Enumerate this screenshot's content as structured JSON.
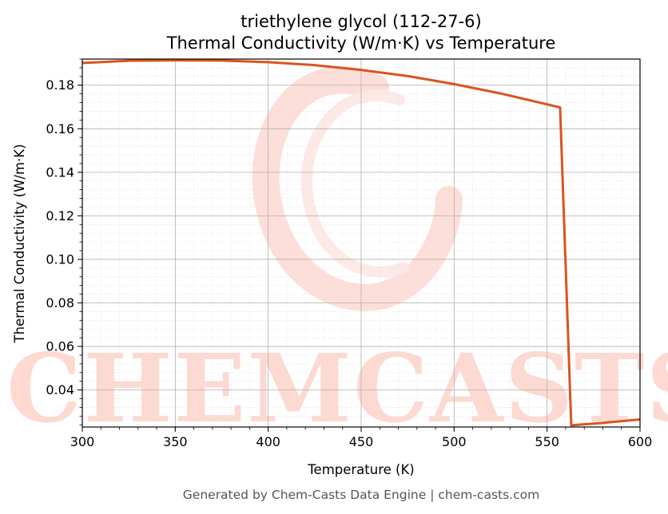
{
  "chart_data": {
    "type": "line",
    "title": "triethylene glycol (112-27-6)",
    "subtitle": "Thermal Conductivity (W/m·K) vs Temperature",
    "xlabel": "Temperature (K)",
    "ylabel": "Thermal Conductivity (W/m·K)",
    "xlim": [
      300,
      600
    ],
    "ylim": [
      0.023,
      0.192
    ],
    "x_ticks": [
      300,
      350,
      400,
      450,
      500,
      550,
      600
    ],
    "x_tick_labels": [
      "300",
      "350",
      "400",
      "450",
      "500",
      "550",
      "600"
    ],
    "y_ticks": [
      0.04,
      0.06,
      0.08,
      0.1,
      0.12,
      0.14,
      0.16,
      0.18
    ],
    "y_tick_labels": [
      "0.04",
      "0.06",
      "0.08",
      "0.10",
      "0.12",
      "0.14",
      "0.16",
      "0.18"
    ],
    "grid": true,
    "line_color": "#d9541e",
    "series": [
      {
        "x": [
          300,
          325,
          350,
          375,
          400,
          425,
          450,
          475,
          500,
          525,
          550,
          557,
          563,
          580,
          600
        ],
        "y": [
          0.1902,
          0.1912,
          0.1914,
          0.1913,
          0.1906,
          0.1892,
          0.187,
          0.1842,
          0.1805,
          0.1762,
          0.1712,
          0.1698,
          0.0238,
          0.0249,
          0.0265
        ]
      }
    ]
  },
  "watermark_text": "CHEMCASTS",
  "footer_text": "Generated by Chem-Casts Data Engine | chem-casts.com"
}
